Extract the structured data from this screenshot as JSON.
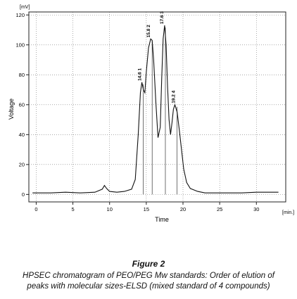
{
  "chart_data": {
    "type": "line",
    "ylabel": "Voltage",
    "xlabel": "Time",
    "y_unit": "[mV]",
    "x_unit": "[min.]",
    "xlim": [
      -1,
      34
    ],
    "ylim": [
      -5,
      122
    ],
    "x_ticks": [
      0,
      5,
      10,
      15,
      20,
      25,
      30
    ],
    "y_ticks": [
      0,
      20,
      40,
      60,
      80,
      100,
      120
    ],
    "grid": true,
    "series": [
      {
        "x": [
          -0.5,
          0,
          2,
          4,
          6,
          8,
          9,
          9.3,
          9.6,
          10,
          11,
          12,
          13,
          13.5,
          13.9,
          14.2,
          14.4,
          14.6,
          14.8,
          15.0,
          15.3,
          15.6,
          15.8,
          16.0,
          16.3,
          16.6,
          16.9,
          17.1,
          17.3,
          17.5,
          17.7,
          17.9,
          18.1,
          18.3,
          18.5,
          18.7,
          18.9,
          19.2,
          19.5,
          19.8,
          20.1,
          20.5,
          21,
          22,
          23,
          25,
          28,
          30,
          32,
          33
        ],
        "y": [
          1,
          1,
          1,
          1.5,
          1,
          1.5,
          3.5,
          6,
          4,
          2,
          1.5,
          2,
          3.5,
          10,
          40,
          68,
          75,
          70,
          68,
          82,
          98,
          104,
          103,
          90,
          62,
          38,
          45,
          78,
          104,
          113,
          100,
          72,
          50,
          40,
          48,
          57,
          60,
          55,
          43,
          30,
          17,
          8,
          4,
          2,
          1,
          1,
          1,
          1.5,
          1.5,
          1.5
        ]
      }
    ],
    "peaks": [
      {
        "x": 14.6,
        "y": 75,
        "label": "14.6",
        "index": "1"
      },
      {
        "x": 15.8,
        "y": 104,
        "label": "15.8",
        "index": "2"
      },
      {
        "x": 17.6,
        "y": 113,
        "label": "17.6",
        "index": "3"
      },
      {
        "x": 19.2,
        "y": 60,
        "label": "19.2",
        "index": "4"
      }
    ]
  },
  "caption": {
    "title": "Figure 2",
    "line1": "HPSEC chromatogram of PEO/PEG Mw standards: Order of elution of",
    "line2": "peaks with molecular sizes-ELSD (mixed standard of 4 compounds)"
  }
}
